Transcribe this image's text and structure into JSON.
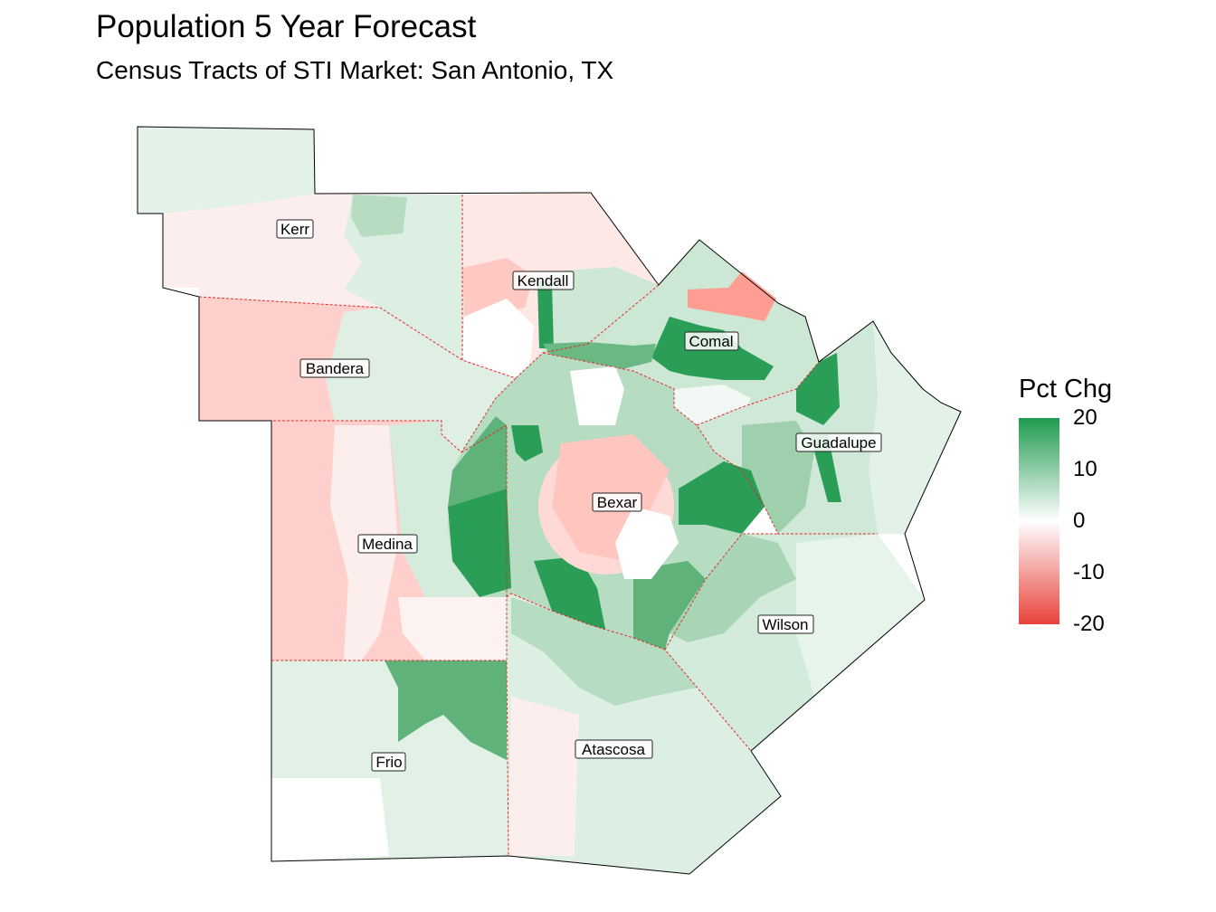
{
  "title": "Population 5 Year Forecast",
  "subtitle": "Census Tracts of STI Market: San Antonio, TX",
  "legend": {
    "title": "Pct Chg",
    "ticks": [
      {
        "value": 20,
        "label": "20"
      },
      {
        "value": 10,
        "label": "10"
      },
      {
        "value": 0,
        "label": "0"
      },
      {
        "value": -10,
        "label": "-10"
      },
      {
        "value": -20,
        "label": "-20"
      }
    ],
    "range": [
      -20,
      20
    ],
    "colors": {
      "low": "#e8413a",
      "mid": "#ffffff",
      "high": "#1f9a4f"
    }
  },
  "counties": [
    {
      "name": "Kerr",
      "pct_chg": -1
    },
    {
      "name": "Kendall",
      "pct_chg": -3
    },
    {
      "name": "Bandera",
      "pct_chg": -6
    },
    {
      "name": "Comal",
      "pct_chg": 10
    },
    {
      "name": "Guadalupe",
      "pct_chg": 8
    },
    {
      "name": "Bexar",
      "pct_chg": 4
    },
    {
      "name": "Medina",
      "pct_chg": -4
    },
    {
      "name": "Wilson",
      "pct_chg": 5
    },
    {
      "name": "Frio",
      "pct_chg": 4
    },
    {
      "name": "Atascosa",
      "pct_chg": 3
    }
  ]
}
